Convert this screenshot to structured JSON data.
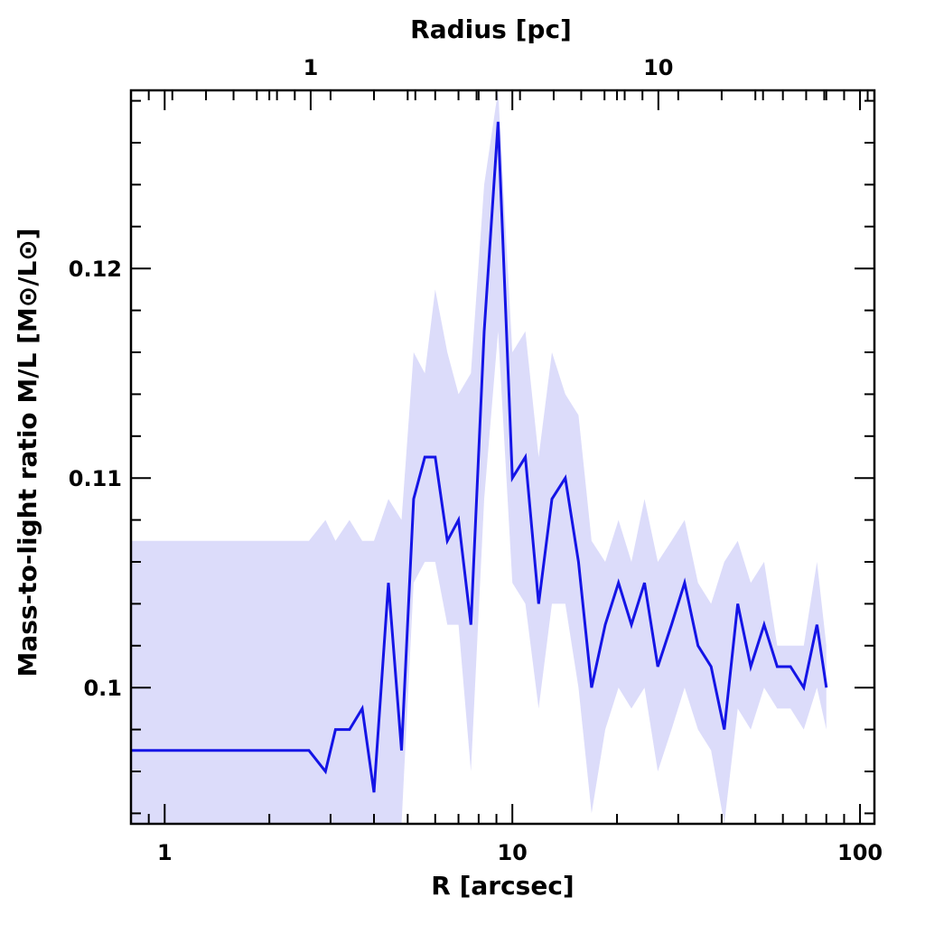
{
  "chart_data": {
    "type": "line",
    "xlabel": "R [arcsec]",
    "ylabel": "Mass-to-light ratio M/L [M⊙/L⊙]",
    "top_xlabel": "Radius [pc]",
    "x_scale": "log",
    "xlim": [
      0.8,
      110
    ],
    "ylim": [
      0.0935,
      0.1285
    ],
    "x_ticks": [
      1,
      10,
      100
    ],
    "x_tick_labels": [
      "1",
      "10",
      "100"
    ],
    "top_x_ticks": [
      1,
      10
    ],
    "top_x_tick_labels": [
      "1",
      "10"
    ],
    "y_ticks": [
      0.1,
      0.11,
      0.12
    ],
    "y_tick_labels": [
      "0.1",
      "0.11",
      "0.12"
    ],
    "colors": {
      "line": "#1414e6",
      "band": "#dcdcfa"
    },
    "series": [
      {
        "x": [
          0.8,
          2.6,
          2.9,
          3.1,
          3.4,
          3.7,
          4.0,
          4.4,
          4.8,
          5.2,
          5.6,
          6.0,
          6.5,
          7.0,
          7.6,
          8.3,
          9.1,
          10.0,
          10.9,
          11.9,
          13.0,
          14.2,
          15.5,
          16.9,
          18.5,
          20.2,
          22.0,
          24.0,
          26.2,
          28.7,
          31.3,
          34.2,
          37.3,
          40.7,
          44.5,
          48.5,
          53.0,
          57.8,
          63.1,
          68.9,
          75.2,
          80.0
        ],
        "y": [
          0.097,
          0.097,
          0.096,
          0.098,
          0.098,
          0.099,
          0.095,
          0.105,
          0.097,
          0.109,
          0.111,
          0.111,
          0.107,
          0.108,
          0.103,
          0.117,
          0.127,
          0.11,
          0.111,
          0.104,
          0.109,
          0.11,
          0.106,
          0.1,
          0.103,
          0.105,
          0.103,
          0.105,
          0.101,
          0.103,
          0.105,
          0.102,
          0.101,
          0.098,
          0.104,
          0.101,
          0.103,
          0.101,
          0.101,
          0.1,
          0.103,
          0.1
        ],
        "lower": [
          0.093,
          0.093,
          0.093,
          0.093,
          0.093,
          0.093,
          0.092,
          0.093,
          0.092,
          0.105,
          0.106,
          0.106,
          0.103,
          0.103,
          0.096,
          0.109,
          0.117,
          0.105,
          0.104,
          0.099,
          0.104,
          0.104,
          0.1,
          0.094,
          0.098,
          0.1,
          0.099,
          0.1,
          0.096,
          0.098,
          0.1,
          0.098,
          0.097,
          0.093,
          0.099,
          0.098,
          0.1,
          0.099,
          0.099,
          0.098,
          0.1,
          0.098
        ],
        "upper": [
          0.107,
          0.107,
          0.108,
          0.107,
          0.108,
          0.107,
          0.107,
          0.109,
          0.108,
          0.116,
          0.115,
          0.119,
          0.116,
          0.114,
          0.115,
          0.124,
          0.13,
          0.116,
          0.117,
          0.111,
          0.116,
          0.114,
          0.113,
          0.107,
          0.106,
          0.108,
          0.106,
          0.109,
          0.106,
          0.107,
          0.108,
          0.105,
          0.104,
          0.106,
          0.107,
          0.105,
          0.106,
          0.102,
          0.102,
          0.102,
          0.106,
          0.102
        ]
      }
    ]
  }
}
